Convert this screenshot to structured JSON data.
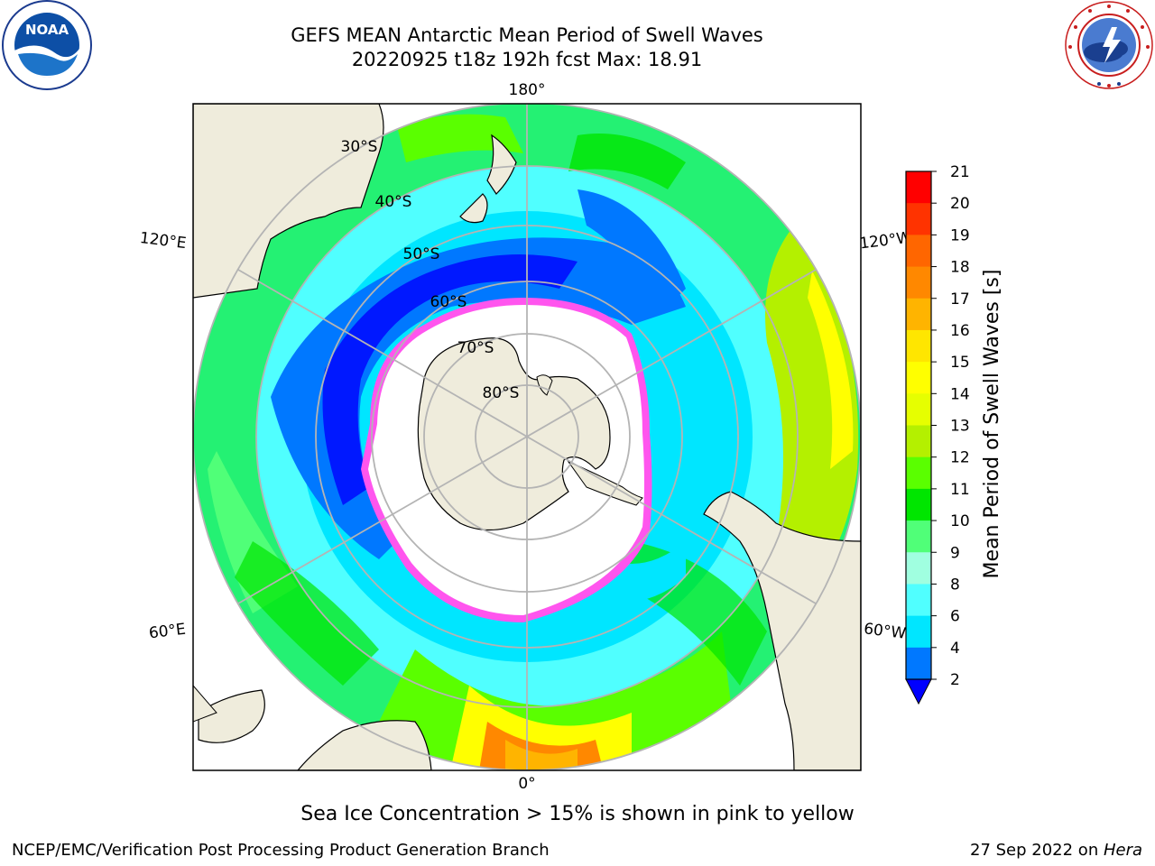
{
  "header": {
    "title_line1": "GEFS MEAN Antarctic Mean Period of Swell Waves",
    "title_line2": "20220925 t18z 192h fcst   Max: 18.91"
  },
  "map": {
    "projection": "south-polar-stereographic",
    "longitude_labels": [
      "180°",
      "120°E",
      "120°W",
      "60°E",
      "60°W",
      "0°"
    ],
    "latitude_labels": [
      "30°S",
      "40°S",
      "50°S",
      "60°S",
      "70°S",
      "80°S"
    ],
    "colors": {
      "land": "#efecdc",
      "sea_ice_interior": "#ffffff",
      "sea_ice_edge": "#ff55ee",
      "grid": "#b4b4b4"
    }
  },
  "colorbar": {
    "label": "Mean Period of Swell Waves [s]",
    "ticks": [
      "21",
      "20",
      "19",
      "18",
      "17",
      "16",
      "15",
      "14",
      "13",
      "12",
      "11",
      "10",
      "9",
      "8",
      "6",
      "4",
      "2"
    ],
    "bands": [
      {
        "from": 20,
        "to": 21,
        "color": "#ff0000"
      },
      {
        "from": 19,
        "to": 20,
        "color": "#ff3300"
      },
      {
        "from": 18,
        "to": 19,
        "color": "#ff6600"
      },
      {
        "from": 17,
        "to": 18,
        "color": "#ff8800"
      },
      {
        "from": 16,
        "to": 17,
        "color": "#ffb400"
      },
      {
        "from": 15,
        "to": 16,
        "color": "#ffe600"
      },
      {
        "from": 14,
        "to": 15,
        "color": "#ffff00"
      },
      {
        "from": 13,
        "to": 14,
        "color": "#e6ff00"
      },
      {
        "from": 12,
        "to": 13,
        "color": "#b4f000"
      },
      {
        "from": 11,
        "to": 12,
        "color": "#5aff00"
      },
      {
        "from": 10,
        "to": 11,
        "color": "#00e600"
      },
      {
        "from": 9,
        "to": 10,
        "color": "#50ff78"
      },
      {
        "from": 8,
        "to": 9,
        "color": "#a0ffe0"
      },
      {
        "from": 6,
        "to": 8,
        "color": "#50ffff"
      },
      {
        "from": 4,
        "to": 6,
        "color": "#00e6ff"
      },
      {
        "from": 2,
        "to": 4,
        "color": "#0078ff"
      }
    ],
    "under_color": "#0000ff"
  },
  "caption": "Sea Ice Concentration > 15% is shown in pink to yellow",
  "footer": {
    "left": "NCEP/EMC/Verification Post Processing Product Generation Branch",
    "right_date": "27 Sep 2022 on ",
    "right_host": "Hera"
  },
  "logos": {
    "left": {
      "name": "noaa-logo",
      "text": "NOAA"
    },
    "right": {
      "name": "nws-logo"
    }
  }
}
